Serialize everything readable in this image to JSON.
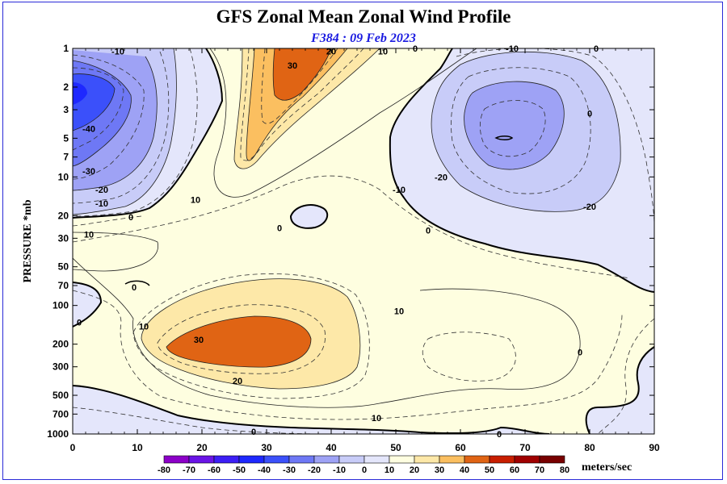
{
  "chart_data": {
    "type": "contour",
    "title": "GFS Zonal Mean Zonal Wind Profile",
    "subtitle": "F384 : 09 Feb 2023",
    "ylabel": "PRESSURE *mb",
    "xlim": [
      0,
      90
    ],
    "ylim": [
      1000,
      1
    ],
    "y_scale": "log",
    "x_ticks": [
      0,
      10,
      20,
      30,
      40,
      50,
      60,
      70,
      80,
      90
    ],
    "y_ticks": [
      1,
      2,
      3,
      5,
      7,
      10,
      20,
      30,
      50,
      70,
      100,
      200,
      300,
      500,
      700,
      1000
    ],
    "colorbar": {
      "units": "meters/sec",
      "levels": [
        -80,
        -70,
        -60,
        -50,
        -40,
        -30,
        -20,
        -10,
        0,
        10,
        20,
        30,
        40,
        50,
        60,
        70,
        80
      ],
      "colors": [
        "#8c00c8",
        "#6a14e6",
        "#3c1ef5",
        "#1e28ff",
        "#3b50fa",
        "#6e78f5",
        "#9ea2f5",
        "#c8ccf8",
        "#e4e6fb",
        "#fefee0",
        "#fde8a8",
        "#fbbf60",
        "#e06414",
        "#c81e00",
        "#a00000",
        "#780000",
        "#a08232"
      ]
    },
    "features": [
      {
        "kind": "min",
        "x": 0,
        "y": 2,
        "value": -60
      },
      {
        "kind": "min",
        "x": 67,
        "y": 5,
        "value": -30
      },
      {
        "kind": "max",
        "x": 33,
        "y": 1.5,
        "value": 40
      },
      {
        "kind": "max",
        "x": 30,
        "y": 200,
        "value": 40
      }
    ],
    "contour_labels": [
      {
        "text": "-10",
        "x": 7,
        "y": 1.05
      },
      {
        "text": "-40",
        "x": 2.5,
        "y": 4.2
      },
      {
        "text": "-30",
        "x": 2.5,
        "y": 9
      },
      {
        "text": "-20",
        "x": 4.5,
        "y": 12.5
      },
      {
        "text": "-10",
        "x": 4.5,
        "y": 16
      },
      {
        "text": "0",
        "x": 9,
        "y": 20.5
      },
      {
        "text": "10",
        "x": 2.5,
        "y": 28
      },
      {
        "text": "0",
        "x": 9.5,
        "y": 72
      },
      {
        "text": "0",
        "x": 1,
        "y": 135
      },
      {
        "text": "10",
        "x": 11,
        "y": 145
      },
      {
        "text": "30",
        "x": 19.5,
        "y": 185
      },
      {
        "text": "20",
        "x": 25.5,
        "y": 385
      },
      {
        "text": "10",
        "x": 47,
        "y": 750
      },
      {
        "text": "0",
        "x": 28,
        "y": 960
      },
      {
        "text": "10",
        "x": 19,
        "y": 15
      },
      {
        "text": "0",
        "x": 32,
        "y": 25
      },
      {
        "text": "30",
        "x": 34,
        "y": 1.35
      },
      {
        "text": "20",
        "x": 40,
        "y": 1.05
      },
      {
        "text": "10",
        "x": 48,
        "y": 1.05
      },
      {
        "text": "0",
        "x": 53,
        "y": 1.0
      },
      {
        "text": "-10",
        "x": 68,
        "y": 1.0
      },
      {
        "text": "0",
        "x": 81,
        "y": 1.0
      },
      {
        "text": "0",
        "x": 55,
        "y": 26
      },
      {
        "text": "-10",
        "x": 50.5,
        "y": 12.5
      },
      {
        "text": "-20",
        "x": 57,
        "y": 10
      },
      {
        "text": "-20",
        "x": 80,
        "y": 17
      },
      {
        "text": "0",
        "x": 80,
        "y": 3.2
      },
      {
        "text": "10",
        "x": 50.5,
        "y": 110
      },
      {
        "text": "0",
        "x": 78.5,
        "y": 230
      },
      {
        "text": "0",
        "x": 66,
        "y": 1000
      }
    ]
  }
}
